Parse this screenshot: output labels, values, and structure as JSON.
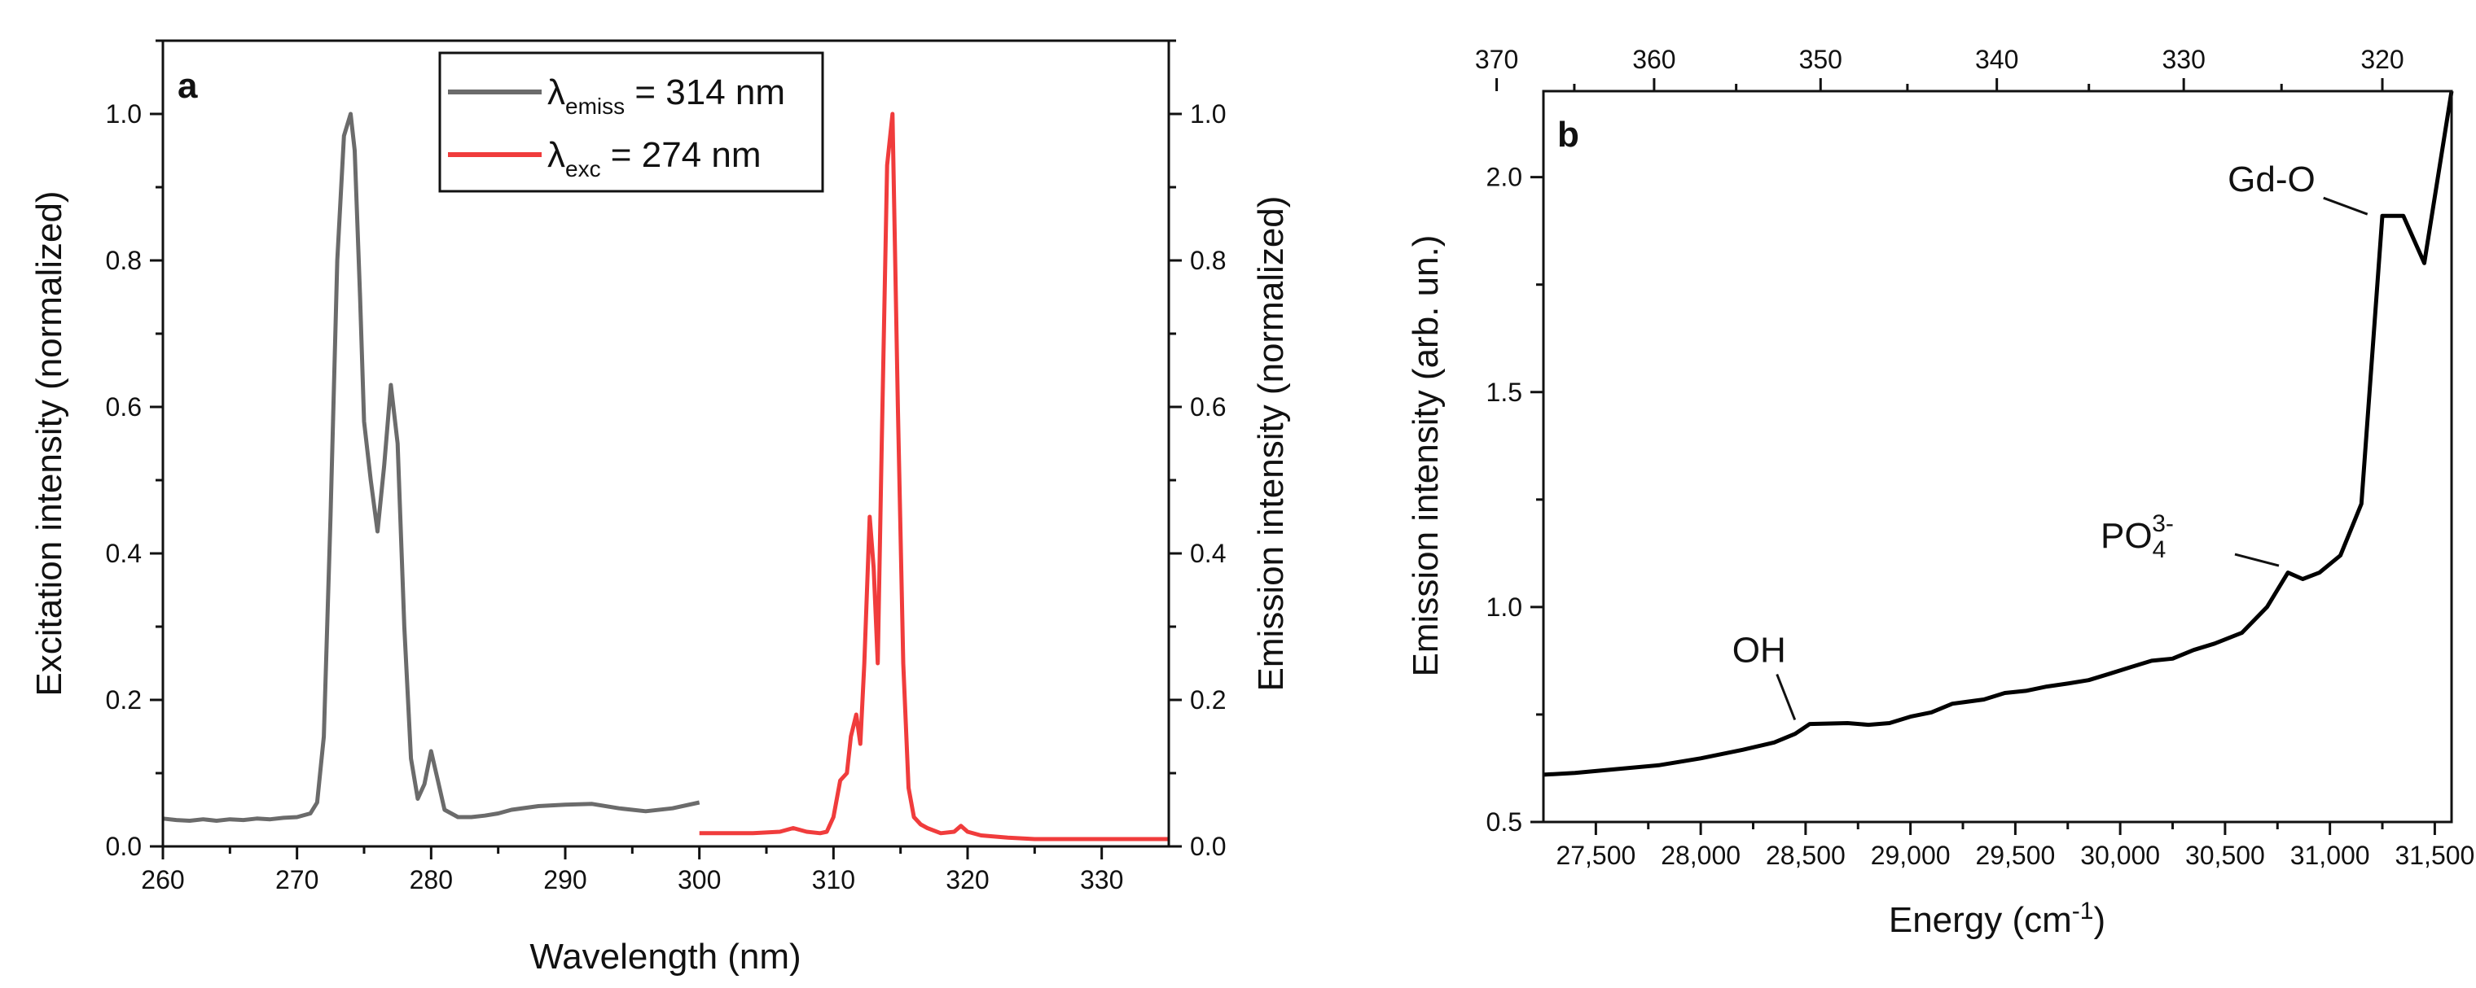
{
  "chart_data": [
    {
      "panel_label": "a",
      "type": "line",
      "xlabel": "Wavelength (nm)",
      "ylabel_left": "Excitation intensity (normalized)",
      "ylabel_right": "Emission intensity (normalized)",
      "xlim": [
        260,
        335
      ],
      "ylim": [
        0,
        1.1
      ],
      "xticks": [
        260,
        270,
        280,
        290,
        300,
        310,
        320,
        330
      ],
      "yticks": [
        0.0,
        0.2,
        0.4,
        0.6,
        0.8,
        1.0
      ],
      "ytick_labels": [
        "0.0",
        "0.2",
        "0.4",
        "0.6",
        "0.8",
        "1.0"
      ],
      "legend_position": "top-center",
      "series": [
        {
          "name": "excitation",
          "legend_symbol": "λ",
          "legend_sub": "emiss",
          "legend_value": " = 314 nm",
          "color": "#6b6b6b",
          "axis": "left",
          "x": [
            260,
            261,
            262,
            263,
            264,
            265,
            266,
            267,
            268,
            269,
            270,
            271,
            271.5,
            272,
            272.5,
            273,
            273.5,
            274,
            274.3,
            274.7,
            275,
            275.5,
            276,
            276.5,
            277,
            277.5,
            278,
            278.5,
            279,
            279.5,
            280,
            280.5,
            281,
            282,
            283,
            284,
            285,
            286,
            288,
            290,
            292,
            294,
            296,
            298,
            300
          ],
          "y": [
            0.038,
            0.036,
            0.035,
            0.037,
            0.035,
            0.037,
            0.036,
            0.038,
            0.037,
            0.039,
            0.04,
            0.045,
            0.06,
            0.15,
            0.45,
            0.8,
            0.97,
            1.0,
            0.95,
            0.75,
            0.58,
            0.5,
            0.43,
            0.52,
            0.63,
            0.55,
            0.3,
            0.12,
            0.065,
            0.085,
            0.13,
            0.09,
            0.05,
            0.04,
            0.04,
            0.042,
            0.045,
            0.05,
            0.055,
            0.057,
            0.058,
            0.052,
            0.048,
            0.052,
            0.06
          ]
        },
        {
          "name": "emission",
          "legend_symbol": "λ",
          "legend_sub": "exc",
          "legend_value": " = 274 nm",
          "color": "#f03c3c",
          "axis": "right",
          "x": [
            300,
            302,
            304,
            306,
            307,
            308,
            309,
            309.5,
            310,
            310.5,
            311,
            311.3,
            311.7,
            312,
            312.3,
            312.7,
            313,
            313.3,
            313.6,
            314,
            314.4,
            314.8,
            315.2,
            315.6,
            316,
            316.5,
            317,
            318,
            319,
            319.5,
            320,
            321,
            323,
            325,
            330,
            335
          ],
          "y": [
            0.018,
            0.018,
            0.018,
            0.02,
            0.025,
            0.02,
            0.018,
            0.02,
            0.04,
            0.09,
            0.1,
            0.15,
            0.18,
            0.14,
            0.25,
            0.45,
            0.38,
            0.25,
            0.55,
            0.93,
            1.0,
            0.6,
            0.25,
            0.08,
            0.04,
            0.03,
            0.025,
            0.018,
            0.02,
            0.028,
            0.02,
            0.015,
            0.012,
            0.01,
            0.01,
            0.01
          ]
        }
      ]
    },
    {
      "panel_label": "b",
      "type": "line",
      "xlabel": "Energy (cm",
      "xlabel_sup": "-1",
      "xlabel_end": ")",
      "ylabel": "Emission intensity (arb. un.)",
      "xlim": [
        27250,
        31580
      ],
      "ylim": [
        0.5,
        2.2
      ],
      "xticks": [
        27500,
        28000,
        28500,
        29000,
        29500,
        30000,
        30500,
        31000,
        31500
      ],
      "xtick_labels": [
        "27,500",
        "28,000",
        "28,500",
        "29,000",
        "29,500",
        "30,000",
        "30,500",
        "31,000",
        "31,500"
      ],
      "yticks": [
        0.5,
        1.0,
        1.5,
        2.0
      ],
      "ytick_labels": [
        "0.5",
        "1.0",
        "1.5",
        "2.0"
      ],
      "top_axis_ticks": [
        370,
        360,
        350,
        340,
        330,
        320
      ],
      "top_axis_label": "",
      "series": [
        {
          "name": "emission",
          "color": "#000000",
          "x": [
            27250,
            27400,
            27600,
            27800,
            28000,
            28200,
            28350,
            28450,
            28520,
            28700,
            28800,
            28900,
            29000,
            29100,
            29200,
            29350,
            29450,
            29550,
            29650,
            29750,
            29850,
            29950,
            30050,
            30150,
            30250,
            30350,
            30450,
            30580,
            30700,
            30800,
            30870,
            30950,
            31050,
            31150,
            31250,
            31350,
            31450,
            31580
          ],
          "y": [
            0.61,
            0.614,
            0.623,
            0.632,
            0.648,
            0.668,
            0.685,
            0.705,
            0.728,
            0.73,
            0.726,
            0.73,
            0.745,
            0.755,
            0.775,
            0.785,
            0.8,
            0.805,
            0.815,
            0.822,
            0.83,
            0.845,
            0.86,
            0.875,
            0.88,
            0.9,
            0.915,
            0.94,
            1.0,
            1.08,
            1.065,
            1.08,
            1.12,
            1.24,
            1.91,
            1.91,
            1.8,
            2.2
          ]
        }
      ],
      "annotations": [
        {
          "text": "OH",
          "x": 28480,
          "y": 0.73
        },
        {
          "text": "PO",
          "sub": "4",
          "sup": "3-",
          "x": 30780,
          "y": 1.1
        },
        {
          "text": "Gd-O",
          "x": 31210,
          "y": 1.91
        }
      ]
    }
  ]
}
